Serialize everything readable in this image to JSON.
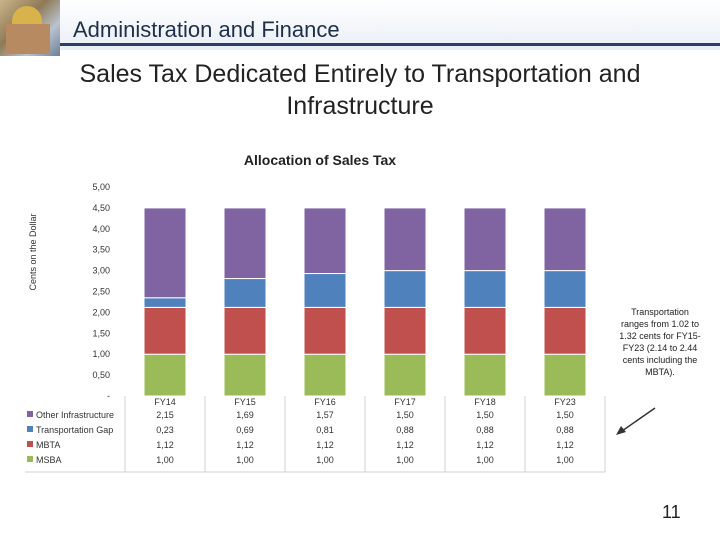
{
  "header": {
    "title": "Administration and Finance"
  },
  "slide_title": "Sales Tax Dedicated Entirely to Transportation and Infrastructure",
  "annotation": "Transportation ranges from 1.02 to 1.32 cents for FY15-FY23 (2.14 to 2.44 cents including the MBTA).",
  "page_number": "11",
  "colors": {
    "Other Infrastructure": "#8064a2",
    "Transportation Gap": "#4f81bd",
    "MBTA": "#c0504d",
    "MSBA": "#9bbb59"
  },
  "chart_data": {
    "type": "bar",
    "stacked": true,
    "title": "Allocation of Sales Tax",
    "ylabel": "Cents on the Dollar",
    "xlabel": "",
    "ylim": [
      0,
      5
    ],
    "y_ticks": [
      "-",
      "0,50",
      "1,00",
      "1,50",
      "2,00",
      "2,50",
      "3,00",
      "3,50",
      "4,00",
      "4,50",
      "5,00"
    ],
    "categories": [
      "FY14",
      "FY15",
      "FY16",
      "FY17",
      "FY18",
      "FY23"
    ],
    "series": [
      {
        "name": "MSBA",
        "values": [
          1.0,
          1.0,
          1.0,
          1.0,
          1.0,
          1.0
        ],
        "labels": [
          "1,00",
          "1,00",
          "1,00",
          "1,00",
          "1,00",
          "1,00"
        ]
      },
      {
        "name": "MBTA",
        "values": [
          1.12,
          1.12,
          1.12,
          1.12,
          1.12,
          1.12
        ],
        "labels": [
          "1,12",
          "1,12",
          "1,12",
          "1,12",
          "1,12",
          "1,12"
        ]
      },
      {
        "name": "Transportation Gap",
        "values": [
          0.23,
          0.69,
          0.81,
          0.88,
          0.88,
          0.88
        ],
        "labels": [
          "0,23",
          "0,69",
          "0,81",
          "0,88",
          "0,88",
          "0,88"
        ]
      },
      {
        "name": "Other Infrastructure",
        "values": [
          2.15,
          1.69,
          1.57,
          1.5,
          1.5,
          1.5
        ],
        "labels": [
          "2,15",
          "1,69",
          "1,57",
          "1,50",
          "1,50",
          "1,50"
        ]
      }
    ],
    "table_row_order": [
      "Other Infrastructure",
      "Transportation Gap",
      "MBTA",
      "MSBA"
    ],
    "legend": "data-table-left"
  }
}
